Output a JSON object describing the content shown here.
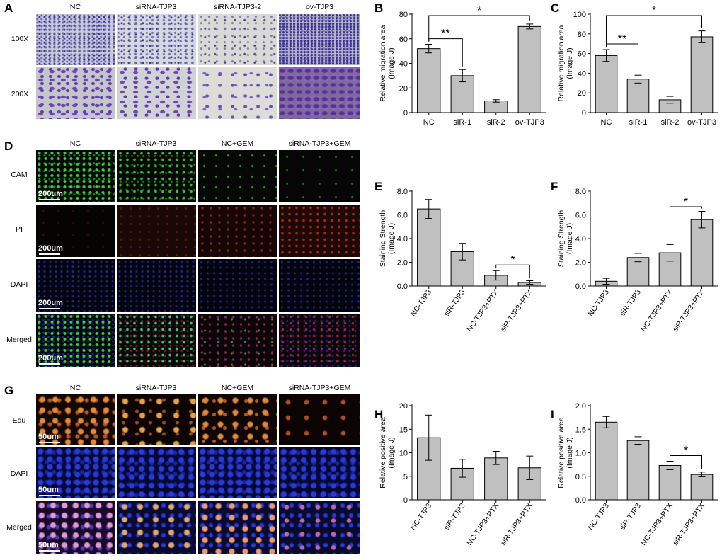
{
  "panel_letters": [
    "A",
    "B",
    "C",
    "D",
    "E",
    "F",
    "G",
    "H",
    "I"
  ],
  "panelA": {
    "columns": [
      "NC",
      "siRNA-TJP3",
      "siRNA-TJP3-2",
      "ov-TJP3"
    ],
    "rows": [
      "100X",
      "200X"
    ]
  },
  "panelD": {
    "columns": [
      "NC",
      "siRNA-TJP3",
      "NC+GEM",
      "siRNA-TJP3+GEM"
    ],
    "rows": [
      "CAM",
      "PI",
      "DAPI",
      "Merged"
    ],
    "scalebar": "200um"
  },
  "panelG": {
    "columns": [
      "NC",
      "siRNA-TJP3",
      "NC+GEM",
      "siRNA-TJP3+GEM"
    ],
    "rows": [
      "Edu",
      "DAPI",
      "Merged"
    ],
    "scalebar": "50um"
  },
  "colors": {
    "bar": "#c0c0c0",
    "stroke": "#000000"
  },
  "chart_data": [
    {
      "id": "B",
      "type": "bar",
      "categories": [
        "NC",
        "siR-1",
        "siR-2",
        "ov-TJP3"
      ],
      "values": [
        52,
        30,
        9.5,
        70
      ],
      "errors": [
        3.5,
        5,
        1,
        2
      ],
      "ylabel": "Relative migration area\n(Image J)",
      "ylim": [
        0,
        80
      ],
      "yticks": [
        0,
        20,
        40,
        60,
        80
      ],
      "sig": [
        {
          "from": 0,
          "to": 1,
          "label": "**",
          "level": 1
        },
        {
          "from": 0,
          "to": 3,
          "label": "*",
          "level": 2
        }
      ],
      "rotate_labels": false
    },
    {
      "id": "C",
      "type": "bar",
      "categories": [
        "NC",
        "siR-1",
        "siR-2",
        "ov-TJP3"
      ],
      "values": [
        58,
        34,
        13,
        77
      ],
      "errors": [
        6,
        4,
        3.5,
        6
      ],
      "ylabel": "Relative migration area\n(Image J)",
      "ylim": [
        0,
        100
      ],
      "yticks": [
        0,
        20,
        40,
        60,
        80,
        100
      ],
      "sig": [
        {
          "from": 0,
          "to": 1,
          "label": "**",
          "level": 1
        },
        {
          "from": 0,
          "to": 3,
          "label": "*",
          "level": 2
        }
      ],
      "rotate_labels": false
    },
    {
      "id": "E",
      "type": "bar",
      "categories": [
        "NC-TJP3",
        "siR-TJP3",
        "NC-TJP3+PTX",
        "siR-TJP3+PTX"
      ],
      "values": [
        6.5,
        2.9,
        0.9,
        0.3
      ],
      "errors": [
        0.8,
        0.7,
        0.4,
        0.15
      ],
      "ylabel": "Staining Strength\n(Image J)",
      "ylim": [
        0,
        8
      ],
      "yticks": [
        0.0,
        2.0,
        4.0,
        6.0,
        8.0
      ],
      "ytick_decimals": 1,
      "sig": [
        {
          "from": 2,
          "to": 3,
          "label": "*",
          "level": 1
        }
      ],
      "rotate_labels": true
    },
    {
      "id": "F",
      "type": "bar",
      "categories": [
        "NC-TJP3",
        "siR-TJP3",
        "NC-TJP3+PTX",
        "siR-TJP3+PTX"
      ],
      "values": [
        0.4,
        2.4,
        2.8,
        5.6
      ],
      "errors": [
        0.25,
        0.35,
        0.7,
        0.7
      ],
      "ylabel": "Staining Strength\n(Image J)",
      "ylim": [
        0,
        8
      ],
      "yticks": [
        0.0,
        2.0,
        4.0,
        6.0,
        8.0
      ],
      "ytick_decimals": 1,
      "sig": [
        {
          "from": 2,
          "to": 3,
          "label": "*",
          "level": 1
        }
      ],
      "rotate_labels": true
    },
    {
      "id": "H",
      "type": "bar",
      "categories": [
        "NC-TJP3",
        "siR-TJP3",
        "NC-TJP3+PTX",
        "siR-TJP3+PTX"
      ],
      "values": [
        13.2,
        6.7,
        8.9,
        6.8
      ],
      "errors": [
        4.8,
        1.9,
        1.4,
        2.5
      ],
      "ylabel": "Relative positive area\n(Image J)",
      "ylim": [
        0,
        20
      ],
      "yticks": [
        0,
        5,
        10,
        15,
        20
      ],
      "sig": [],
      "rotate_labels": true
    },
    {
      "id": "I",
      "type": "bar",
      "categories": [
        "NC-TJP3",
        "siR-TJP3",
        "NC-TJP3+PTX",
        "siR-TJP3+PTX"
      ],
      "values": [
        1.65,
        1.26,
        0.73,
        0.54
      ],
      "errors": [
        0.12,
        0.08,
        0.09,
        0.05
      ],
      "ylabel": "Relative positive area\n(Image J)",
      "ylim": [
        0,
        2
      ],
      "yticks": [
        0.0,
        0.5,
        1.0,
        1.5,
        2.0
      ],
      "ytick_decimals": 1,
      "sig": [
        {
          "from": 2,
          "to": 3,
          "label": "*",
          "level": 1
        }
      ],
      "rotate_labels": true
    }
  ]
}
